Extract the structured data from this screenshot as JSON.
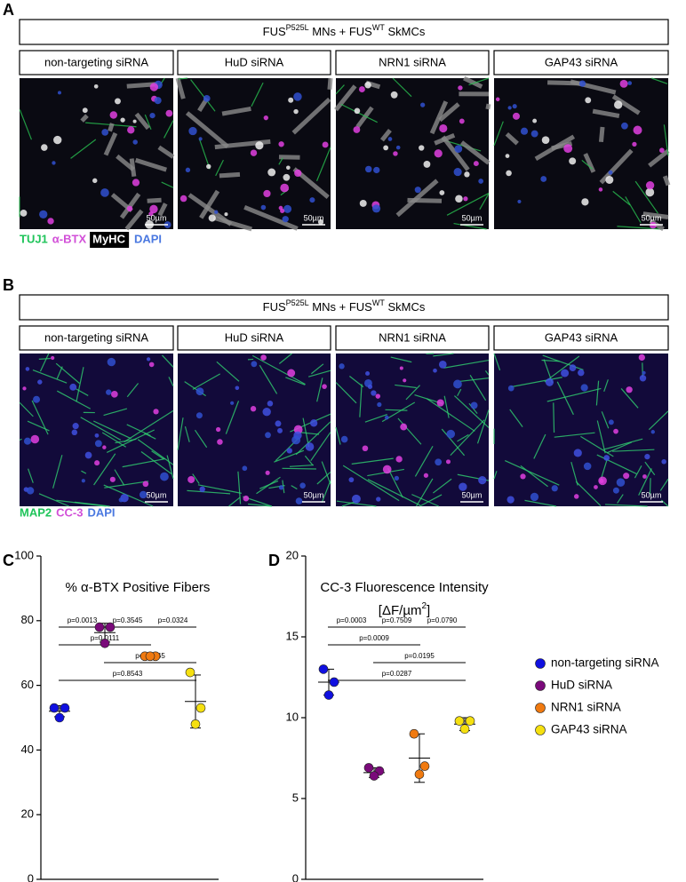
{
  "panels": [
    {
      "letter": "A",
      "header": {
        "a": "FUS",
        "sup1": "P525L",
        "b": " MNs + FUS",
        "sup2": "WT",
        "c": " SkMCs"
      },
      "columns": [
        "non-targeting siRNA",
        "HuD siRNA",
        "NRN1 siRNA",
        "GAP43 siRNA"
      ],
      "scale_bar": "50µm",
      "stains": [
        {
          "text": "TUJ1",
          "color": "#1fc45a"
        },
        {
          "text": "α-BTX",
          "color": "#d24fd8"
        },
        {
          "text": "MyHC",
          "color": "#ffffff",
          "box": true
        },
        {
          "text": "DAPI",
          "color": "#4a78e0"
        }
      ]
    },
    {
      "letter": "B",
      "header": {
        "a": "FUS",
        "sup1": "P525L",
        "b": " MNs + FUS",
        "sup2": "WT",
        "c": " SkMCs"
      },
      "columns": [
        "non-targeting siRNA",
        "HuD siRNA",
        "NRN1 siRNA",
        "GAP43 siRNA"
      ],
      "scale_bar": "50µm",
      "stains": [
        {
          "text": "MAP2",
          "color": "#1fc45a"
        },
        {
          "text": "CC-3",
          "color": "#d24fd8"
        },
        {
          "text": "DAPI",
          "color": "#4a78e0"
        }
      ]
    }
  ],
  "legend": [
    {
      "name": "non-targeting siRNA",
      "color": "#1010e0"
    },
    {
      "name": "HuD siRNA",
      "color": "#7a0a7a"
    },
    {
      "name": "NRN1 siRNA",
      "color": "#f07a10"
    },
    {
      "name": "GAP43 siRNA",
      "color": "#f5e010"
    }
  ],
  "chart_data": [
    {
      "type": "dot",
      "letter": "C",
      "title": "% α-BTX Positive Fibers",
      "ylim": [
        0,
        100
      ],
      "yticks": [
        0,
        20,
        40,
        60,
        80,
        100
      ],
      "series": [
        {
          "color": "#1010e0",
          "values": [
            53,
            53,
            50
          ],
          "mean": 52,
          "sd": 1.7
        },
        {
          "color": "#7a0a7a",
          "values": [
            78,
            78,
            73
          ],
          "mean": 76.3,
          "sd": 2.9
        },
        {
          "color": "#f07a10",
          "values": [
            69,
            69,
            69
          ],
          "mean": 69,
          "sd": 1
        },
        {
          "color": "#f5e010",
          "values": [
            64,
            53,
            48
          ],
          "mean": 55,
          "sd": 8.2
        }
      ],
      "comparisons": [
        [
          {
            "label": "p=0.0013",
            "groups": [
              0,
              1
            ]
          },
          {
            "label": "p=0.3545",
            "groups": [
              1,
              2
            ]
          },
          {
            "label": "p=0.0324",
            "groups": [
              2,
              3
            ]
          }
        ],
        [
          {
            "label": "p=0.0111",
            "groups": [
              0,
              2
            ]
          }
        ],
        [
          {
            "label": "p=0.0045",
            "groups": [
              1,
              3
            ]
          }
        ],
        [
          {
            "label": "p=0.8543",
            "groups": [
              0,
              3
            ]
          }
        ]
      ]
    },
    {
      "type": "dot",
      "letter": "D",
      "title": "CC-3 Fluorescence Intensity",
      "subtitle": {
        "a": "[ΔF/µm",
        "sup": "2",
        "b": "]"
      },
      "ylim": [
        0,
        20
      ],
      "yticks": [
        0,
        5,
        10,
        15,
        20
      ],
      "series": [
        {
          "color": "#1010e0",
          "values": [
            13,
            12.2,
            11.4
          ],
          "mean": 12.2,
          "sd": 0.8
        },
        {
          "color": "#7a0a7a",
          "values": [
            6.9,
            6.7,
            6.4
          ],
          "mean": 6.6,
          "sd": 0.3
        },
        {
          "color": "#f07a10",
          "values": [
            9,
            7,
            6.5
          ],
          "mean": 7.5,
          "sd": 1.5
        },
        {
          "color": "#f5e010",
          "values": [
            9.8,
            9.8,
            9.3
          ],
          "mean": 9.6,
          "sd": 0.4
        }
      ],
      "comparisons": [
        [
          {
            "label": "p=0.0003",
            "groups": [
              0,
              1
            ]
          },
          {
            "label": "p=0.7509",
            "groups": [
              1,
              2
            ]
          },
          {
            "label": "p=0.0790",
            "groups": [
              2,
              3
            ]
          }
        ],
        [
          {
            "label": "p=0.0009",
            "groups": [
              0,
              2
            ]
          }
        ],
        [
          {
            "label": "p=0.0195",
            "groups": [
              1,
              3
            ]
          }
        ],
        [
          {
            "label": "p=0.0287",
            "groups": [
              0,
              3
            ]
          }
        ]
      ]
    }
  ]
}
